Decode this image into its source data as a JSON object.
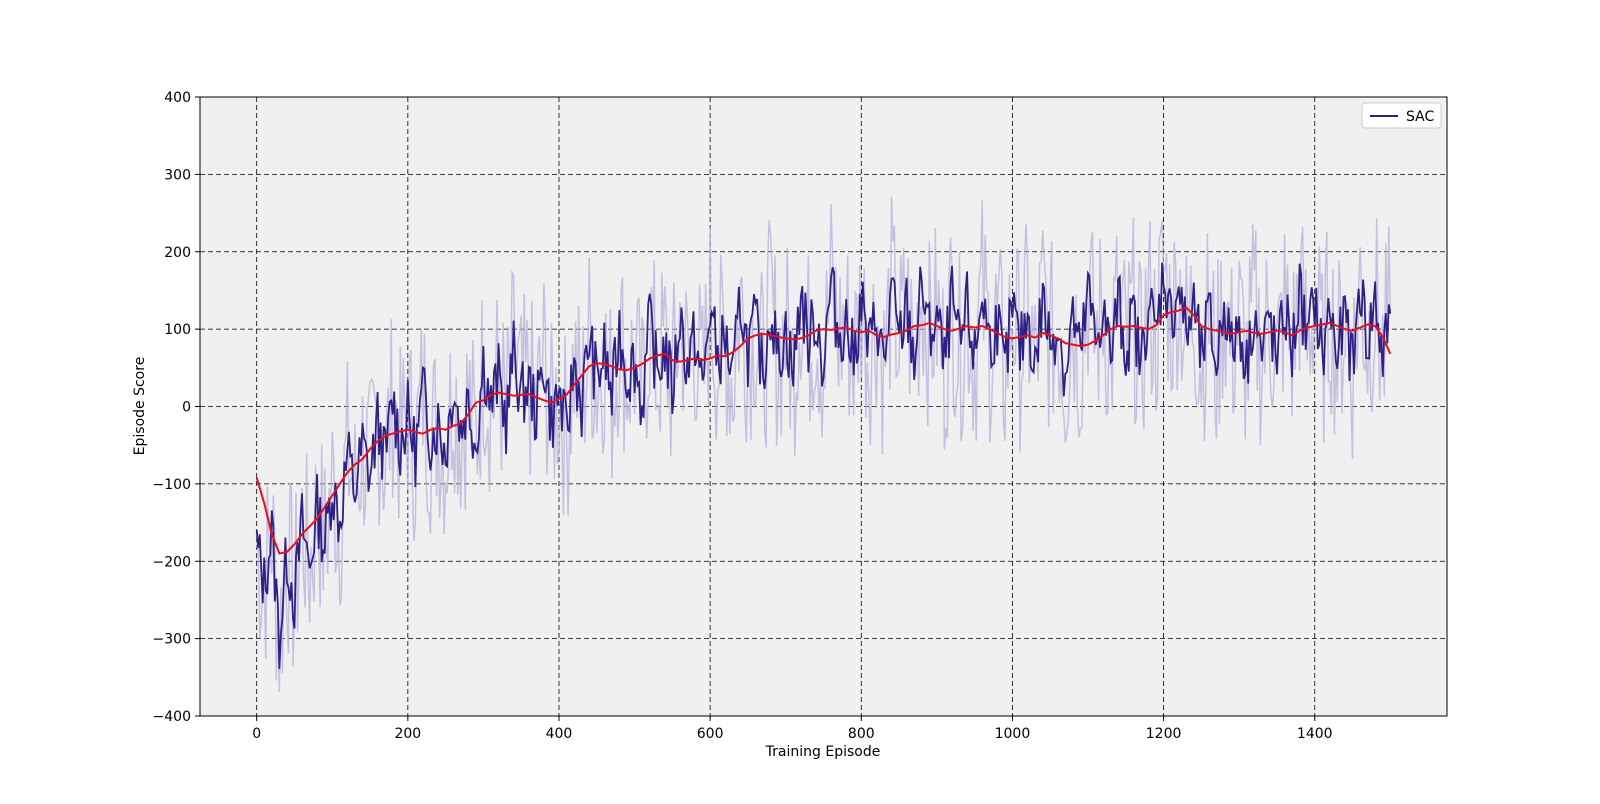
{
  "chart_data": {
    "type": "line",
    "title": "",
    "xlabel": "Training Episode",
    "ylabel": "Episode Score",
    "xlim": [
      -75,
      1575
    ],
    "ylim": [
      -400,
      400
    ],
    "xticks": [
      0,
      200,
      400,
      600,
      800,
      1000,
      1200,
      1400
    ],
    "yticks": [
      -400,
      -300,
      -200,
      -100,
      0,
      100,
      200,
      300,
      400
    ],
    "grid": true,
    "legend": {
      "placement": "top-right",
      "entries": [
        "SAC"
      ]
    },
    "colors": {
      "raw": "#b8b0d8",
      "score": "#2e2185",
      "moving_average": "#e8101c",
      "background": "#f0f0f0"
    },
    "series": [
      {
        "name": "SAC",
        "role": "score",
        "x": [
          0,
          10,
          20,
          30,
          40,
          50,
          60,
          70,
          80,
          90,
          100,
          110,
          120,
          130,
          140,
          150,
          160,
          170,
          180,
          190,
          200,
          210,
          220,
          230,
          240,
          250,
          260,
          270,
          280,
          290,
          300,
          310,
          320,
          330,
          340,
          350,
          360,
          370,
          380,
          390,
          400,
          410,
          420,
          430,
          440,
          450,
          460,
          470,
          480,
          490,
          500,
          510,
          520,
          530,
          540,
          550,
          560,
          570,
          580,
          590,
          600,
          610,
          620,
          630,
          640,
          650,
          660,
          670,
          680,
          690,
          700,
          710,
          720,
          730,
          740,
          750,
          760,
          770,
          780,
          790,
          800,
          810,
          820,
          830,
          840,
          850,
          860,
          870,
          880,
          890,
          900,
          910,
          920,
          930,
          940,
          950,
          960,
          970,
          980,
          990,
          1000,
          1010,
          1020,
          1030,
          1040,
          1050,
          1060,
          1070,
          1080,
          1090,
          1100,
          1110,
          1120,
          1130,
          1140,
          1150,
          1160,
          1170,
          1180,
          1190,
          1200,
          1210,
          1220,
          1230,
          1240,
          1250,
          1260,
          1270,
          1280,
          1290,
          1300,
          1310,
          1320,
          1330,
          1340,
          1350,
          1360,
          1370,
          1380,
          1390,
          1400,
          1410,
          1420,
          1430,
          1440,
          1450,
          1460,
          1470,
          1480,
          1490,
          1500
        ],
        "values": [
          -180,
          -230,
          -160,
          -300,
          -190,
          -250,
          -150,
          -210,
          -130,
          -180,
          -100,
          -150,
          -60,
          -110,
          -50,
          -90,
          -20,
          -70,
          10,
          -50,
          -10,
          -60,
          20,
          -40,
          -20,
          -60,
          30,
          -30,
          10,
          -50,
          60,
          0,
          40,
          -20,
          70,
          10,
          30,
          -10,
          60,
          -20,
          20,
          -40,
          60,
          0,
          90,
          30,
          70,
          10,
          100,
          40,
          60,
          0,
          110,
          40,
          80,
          20,
          120,
          50,
          90,
          20,
          130,
          60,
          90,
          30,
          140,
          70,
          110,
          40,
          130,
          60,
          100,
          40,
          150,
          80,
          120,
          50,
          160,
          90,
          110,
          60,
          140,
          70,
          120,
          50,
          150,
          80,
          130,
          60,
          160,
          90,
          120,
          50,
          140,
          70,
          130,
          60,
          150,
          80,
          110,
          40,
          130,
          70,
          120,
          50,
          140,
          80,
          110,
          40,
          120,
          60,
          150,
          80,
          130,
          60,
          140,
          70,
          120,
          50,
          140,
          90,
          180,
          110,
          160,
          90,
          130,
          60,
          120,
          50,
          140,
          70,
          110,
          50,
          130,
          60,
          120,
          50,
          130,
          70,
          150,
          80,
          140,
          60,
          130,
          60,
          120,
          50,
          160,
          80,
          140,
          60,
          120
        ]
      },
      {
        "role": "moving_average",
        "x": [
          0,
          10,
          20,
          30,
          40,
          50,
          60,
          70,
          80,
          90,
          100,
          110,
          120,
          130,
          140,
          150,
          160,
          170,
          180,
          190,
          200,
          210,
          220,
          230,
          240,
          250,
          260,
          270,
          280,
          290,
          300,
          310,
          320,
          330,
          340,
          350,
          360,
          370,
          380,
          390,
          400,
          410,
          420,
          430,
          440,
          450,
          460,
          470,
          480,
          490,
          500,
          510,
          520,
          530,
          540,
          550,
          560,
          570,
          580,
          590,
          600,
          610,
          620,
          630,
          640,
          650,
          660,
          670,
          680,
          690,
          700,
          710,
          720,
          730,
          740,
          750,
          760,
          770,
          780,
          790,
          800,
          810,
          820,
          830,
          840,
          850,
          860,
          870,
          880,
          890,
          900,
          910,
          920,
          930,
          940,
          950,
          960,
          970,
          980,
          990,
          1000,
          1010,
          1020,
          1030,
          1040,
          1050,
          1060,
          1070,
          1080,
          1090,
          1100,
          1110,
          1120,
          1130,
          1140,
          1150,
          1160,
          1170,
          1180,
          1190,
          1200,
          1210,
          1220,
          1230,
          1240,
          1250,
          1260,
          1270,
          1280,
          1290,
          1300,
          1310,
          1320,
          1330,
          1340,
          1350,
          1360,
          1370,
          1380,
          1390,
          1400,
          1410,
          1420,
          1430,
          1440,
          1450,
          1460,
          1470,
          1480,
          1490,
          1500
        ],
        "values": [
          -92,
          -125,
          -165,
          -190,
          -188,
          -178,
          -165,
          -155,
          -145,
          -130,
          -115,
          -100,
          -85,
          -75,
          -68,
          -55,
          -45,
          -38,
          -35,
          -32,
          -30,
          -33,
          -35,
          -30,
          -28,
          -30,
          -25,
          -22,
          -10,
          5,
          8,
          15,
          18,
          16,
          14,
          15,
          16,
          12,
          8,
          5,
          10,
          15,
          28,
          40,
          52,
          56,
          55,
          52,
          48,
          47,
          50,
          55,
          62,
          66,
          68,
          60,
          58,
          60,
          62,
          60,
          62,
          66,
          65,
          70,
          78,
          88,
          92,
          94,
          92,
          90,
          88,
          87,
          88,
          92,
          98,
          100,
          99,
          101,
          102,
          98,
          96,
          98,
          92,
          90,
          93,
          95,
          98,
          104,
          105,
          108,
          104,
          100,
          98,
          101,
          104,
          102,
          104,
          100,
          95,
          90,
          88,
          90,
          92,
          89,
          95,
          92,
          88,
          82,
          80,
          78,
          80,
          85,
          92,
          100,
          104,
          103,
          104,
          102,
          100,
          105,
          118,
          122,
          124,
          128,
          118,
          104,
          100,
          98,
          96,
          94,
          96,
          98,
          95,
          94,
          96,
          98,
          96,
          92,
          98,
          102,
          104,
          106,
          108,
          104,
          100,
          98,
          102,
          106,
          104,
          90,
          68
        ]
      }
    ]
  }
}
